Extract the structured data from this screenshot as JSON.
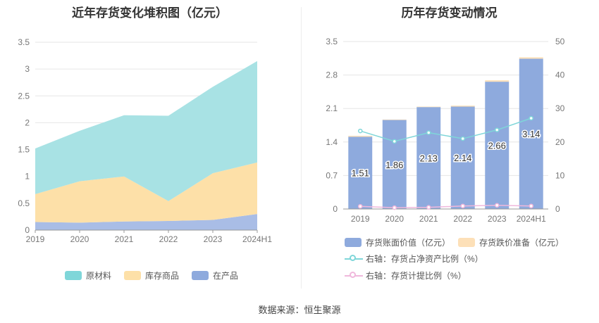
{
  "left_chart": {
    "title": "近年存货变化堆积图（亿元）",
    "legend": [
      {
        "label": "原材料",
        "color": "#7fd6d9"
      },
      {
        "label": "库存商品",
        "color": "#fde0a8"
      },
      {
        "label": "在产品",
        "color": "#8eaadd"
      }
    ]
  },
  "right_chart": {
    "title": "历年存货变动情况",
    "legend": [
      {
        "label": "存货账面价值（亿元）",
        "color": "#8eaadd"
      },
      {
        "label": "存货跌价准备（亿元）",
        "color": "#fde0b8"
      },
      {
        "label": "右轴：存货占净资产比例（%）",
        "color": "#7fd6d9"
      },
      {
        "label": "右轴：存货计提比例（%）",
        "color": "#f0b8dc"
      }
    ]
  },
  "source": "数据来源：恒生聚源",
  "chart_data": [
    {
      "type": "area",
      "stacked": true,
      "title": "近年存货变化堆积图（亿元）",
      "categories": [
        "2019",
        "2020",
        "2021",
        "2022",
        "2023",
        "2024H1"
      ],
      "ylim": [
        0,
        3.5
      ],
      "yticks": [
        "0",
        "0.5",
        "1",
        "1.5",
        "2",
        "2.5",
        "3",
        "3.5"
      ],
      "series": [
        {
          "name": "在产品",
          "color": "#a9bde6",
          "values": [
            0.15,
            0.14,
            0.16,
            0.17,
            0.19,
            0.3
          ]
        },
        {
          "name": "库存商品",
          "color": "#fde0a8",
          "values": [
            0.52,
            0.77,
            0.84,
            0.37,
            0.87,
            0.96
          ]
        },
        {
          "name": "原材料",
          "color": "#a8e2e4",
          "values": [
            0.85,
            0.94,
            1.14,
            1.59,
            1.61,
            1.89
          ]
        }
      ],
      "legend_position": "bottom",
      "grid": true
    },
    {
      "type": "bar",
      "stacked": true,
      "title": "历年存货变动情况",
      "categories": [
        "2019",
        "2020",
        "2021",
        "2022",
        "2023",
        "2024H1"
      ],
      "ylim": [
        0,
        3.5
      ],
      "yticks": [
        "0",
        "0.7",
        "1.4",
        "2.1",
        "2.8",
        "3.5"
      ],
      "y2lim": [
        0,
        50
      ],
      "y2ticks": [
        "0",
        "10",
        "20",
        "30",
        "40",
        "50"
      ],
      "series": [
        {
          "name": "存货账面价值（亿元）",
          "axis": "left",
          "color": "#8eaadd",
          "values": [
            1.51,
            1.86,
            2.13,
            2.14,
            2.66,
            3.14
          ],
          "labels": [
            "1.51",
            "1.86",
            "2.13",
            "2.14",
            "2.66",
            "3.14"
          ]
        },
        {
          "name": "存货跌价准备（亿元）",
          "axis": "left",
          "color": "#fde0b8",
          "values": [
            0.02,
            0.01,
            0.01,
            0.02,
            0.03,
            0.03
          ]
        },
        {
          "name": "右轴：存货占净资产比例（%）",
          "axis": "right",
          "type": "line",
          "color": "#7fd6d9",
          "values": [
            23.3,
            20.2,
            22.8,
            21.0,
            23.6,
            27.1
          ]
        },
        {
          "name": "右轴：存货计提比例（%）",
          "axis": "right",
          "type": "line",
          "color": "#f0b8dc",
          "values": [
            0.8,
            0.4,
            0.5,
            0.9,
            1.1,
            0.9
          ]
        }
      ],
      "legend_position": "bottom",
      "grid": true
    }
  ]
}
